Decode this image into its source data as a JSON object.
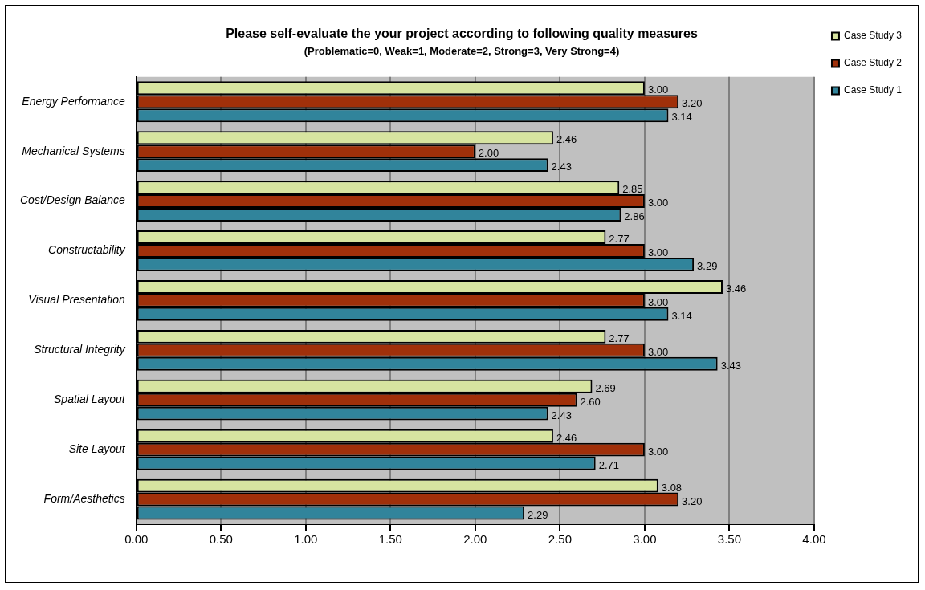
{
  "chart_data": {
    "type": "bar",
    "orientation": "horizontal",
    "title": "Please self-evaluate the your project according to following quality measures",
    "subtitle": "(Problematic=0, Weak=1, Moderate=2, Strong=3, Very Strong=4)",
    "categories": [
      "Energy Performance",
      "Mechanical Systems",
      "Cost/Design Balance",
      "Constructability",
      "Visual Presentation",
      "Structural Integrity",
      "Spatial Layout",
      "Site Layout",
      "Form/Aesthetics"
    ],
    "series": [
      {
        "name": "Case Study 3",
        "color": "#d7e4a0",
        "values": [
          3.0,
          2.46,
          2.85,
          2.77,
          3.46,
          2.77,
          2.69,
          2.46,
          3.08
        ],
        "value_labels": [
          "3.00",
          "2.46",
          "2.85",
          "2.77",
          "3.46",
          "2.77",
          "2.69",
          "2.46",
          "3.08"
        ]
      },
      {
        "name": "Case Study 2",
        "color": "#a0300a",
        "values": [
          3.2,
          2.0,
          3.0,
          3.0,
          3.0,
          3.0,
          2.6,
          3.0,
          3.2
        ],
        "value_labels": [
          "3.20",
          "2.00",
          "3.00",
          "3.00",
          "3.00",
          "3.00",
          "2.60",
          "3.00",
          "3.20"
        ]
      },
      {
        "name": "Case Study 1",
        "color": "#31849b",
        "values": [
          3.14,
          2.43,
          2.86,
          3.29,
          3.14,
          3.43,
          2.43,
          2.71,
          2.29
        ],
        "value_labels": [
          "3.14",
          "2.43",
          "2.86",
          "3.29",
          "3.14",
          "3.43",
          "2.43",
          "2.71",
          "2.29"
        ]
      }
    ],
    "xlim": [
      0,
      4
    ],
    "xticks": [
      {
        "value": 0,
        "label": "0.00"
      },
      {
        "value": 0.5,
        "label": "0.50"
      },
      {
        "value": 1,
        "label": "1.00"
      },
      {
        "value": 1.5,
        "label": "1.50"
      },
      {
        "value": 2,
        "label": "2.00"
      },
      {
        "value": 2.5,
        "label": "2.50"
      },
      {
        "value": 3,
        "label": "3.00"
      },
      {
        "value": 3.5,
        "label": "3.50"
      },
      {
        "value": 4,
        "label": "4.00"
      }
    ],
    "grid": "x",
    "legend": "right"
  }
}
